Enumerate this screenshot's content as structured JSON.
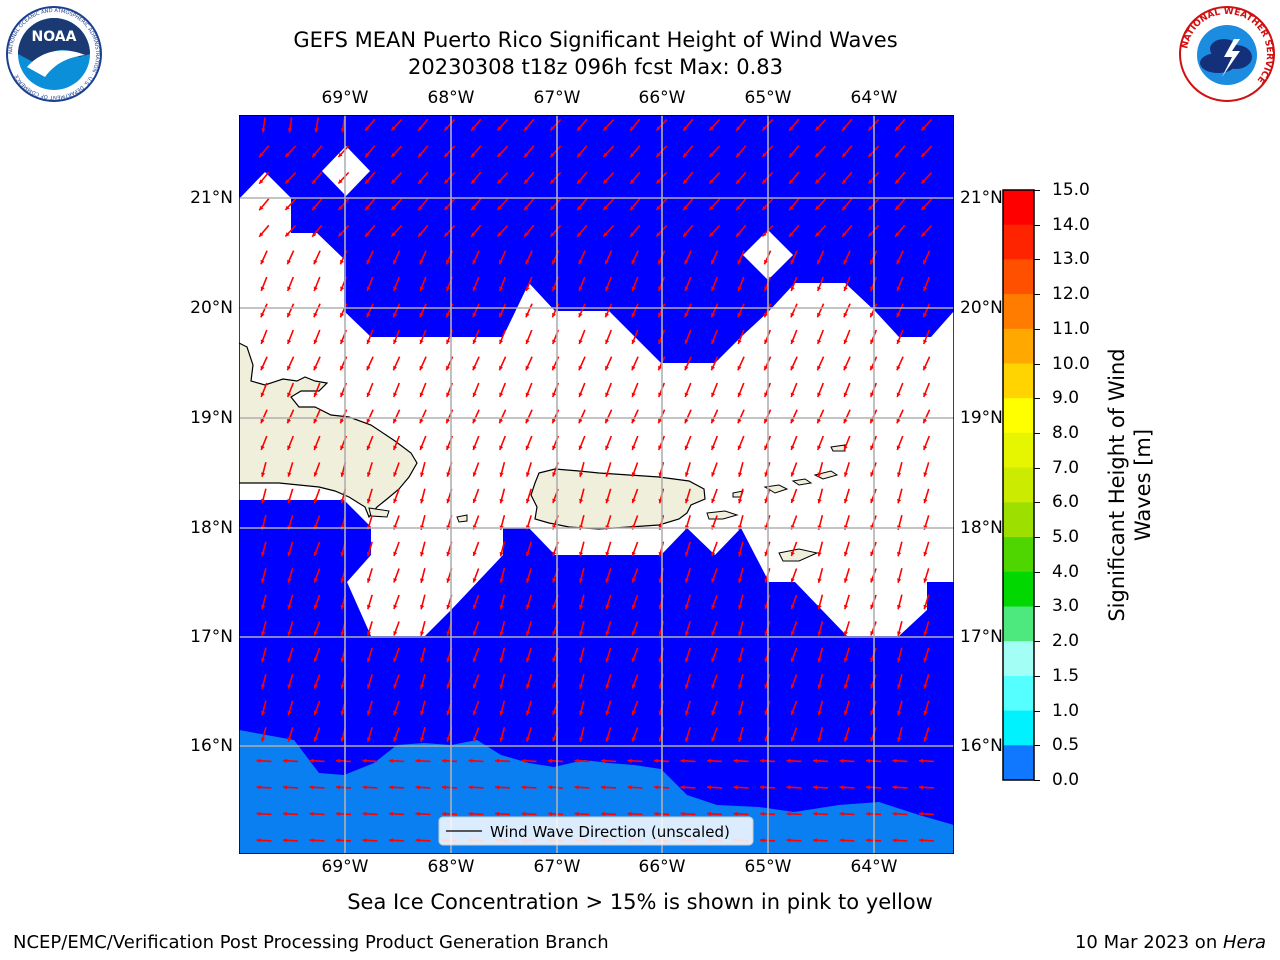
{
  "title": {
    "line1": "GEFS MEAN Puerto Rico Significant Height of Wind Waves",
    "line2": "20230308 t18z 096h fcst   Max: 0.83"
  },
  "logos": {
    "left": "NOAA",
    "left_ring_text": "NATIONAL OCEANIC AND ATMOSPHERIC ADMINISTRATION · U.S. DEPARTMENT OF COMMERCE",
    "right_ring_text": "NATIONAL WEATHER SERVICE"
  },
  "map": {
    "lon_labels": [
      "69°W",
      "68°W",
      "67°W",
      "66°W",
      "65°W",
      "64°W"
    ],
    "lat_labels": [
      "21°N",
      "20°N",
      "19°N",
      "18°N",
      "17°N",
      "16°N"
    ],
    "legend_label": "Wind Wave Direction (unscaled)",
    "colors": {
      "ocean_low": "#0000ff",
      "ocean_mid": "#0a7ff2",
      "land": "#efefdb",
      "arrow": "#ff0000",
      "grid": "#b0b0b0"
    }
  },
  "colorbar": {
    "label": "Significant Height of Wind Waves [m]",
    "levels": [
      "15.0",
      "14.0",
      "13.0",
      "12.0",
      "11.0",
      "10.0",
      "9.0",
      "8.0",
      "7.0",
      "6.0",
      "5.0",
      "4.0",
      "3.0",
      "2.0",
      "1.5",
      "1.0",
      "0.5",
      "0.0"
    ],
    "colors": [
      "#ff0000",
      "#ff2400",
      "#ff5000",
      "#ff7c00",
      "#ffa800",
      "#ffd400",
      "#ffff00",
      "#e6f500",
      "#cbeb00",
      "#9de000",
      "#4fd500",
      "#00d800",
      "#4de87e",
      "#a3fff6",
      "#55ffff",
      "#00f2ff",
      "#1078ff",
      "#0000ff"
    ]
  },
  "caption": "Sea Ice Concentration > 15% is shown in pink to yellow",
  "footer": {
    "left": "NCEP/EMC/Verification Post Processing Product Generation Branch",
    "date": "10 Mar 2023 on ",
    "machine": "Hera"
  }
}
